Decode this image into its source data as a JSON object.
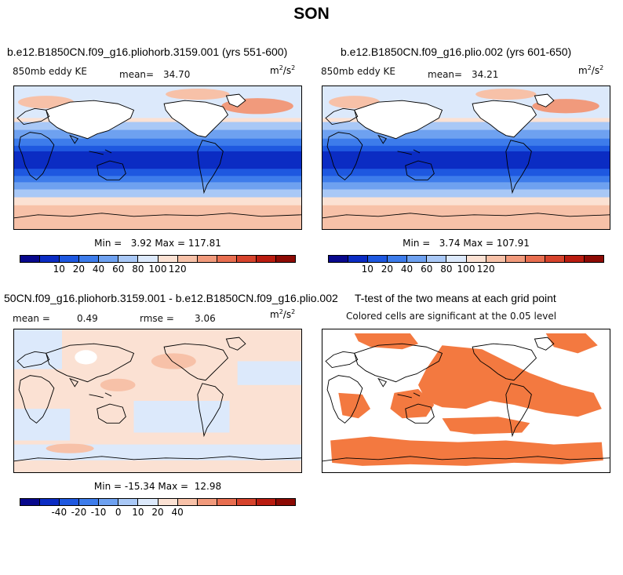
{
  "page": {
    "title": "SON"
  },
  "colors": {
    "scale": [
      "#08088c",
      "#0b2cc3",
      "#1e58e0",
      "#3d7ceb",
      "#6ea1f0",
      "#a9c8f6",
      "#dce9fb",
      "#fbe1d3",
      "#f7c1a8",
      "#f19a7c",
      "#e86e50",
      "#d6432c",
      "#b91c10",
      "#8c0a04"
    ],
    "significant": "#f37940",
    "land_white": "#ffffff"
  },
  "panels": {
    "p1": {
      "title": "b.e12.B1850CN.f09_g16.pliohorb.3159.001 (yrs 551-600)",
      "left_label": "850mb eddy KE",
      "mean_label": "mean=",
      "mean_value": "34.70",
      "units": "m",
      "units_sup": "2",
      "units_tail": "/s",
      "units_sup2": "2",
      "min_label": "Min =",
      "min_value": "3.92",
      "max_label": "Max =",
      "max_value": "117.81"
    },
    "p2": {
      "title": "b.e12.B1850CN.f09_g16.plio.002 (yrs 601-650)",
      "left_label": "850mb eddy KE",
      "mean_label": "mean=",
      "mean_value": "34.21",
      "units": "m",
      "units_sup": "2",
      "units_tail": "/s",
      "units_sup2": "2",
      "min_label": "Min =",
      "min_value": "3.74",
      "max_label": "Max =",
      "max_value": "107.91"
    },
    "p3": {
      "title": "50CN.f09_g16.pliohorb.3159.001 - b.e12.B1850CN.f09_g16.plio.002",
      "mean_label": "mean =",
      "mean_value": "0.49",
      "rmse_label": "rmse =",
      "rmse_value": "3.06",
      "units": "m",
      "units_sup": "2",
      "units_tail": "/s",
      "units_sup2": "2",
      "min_label": "Min =",
      "min_value": "-15.34",
      "max_label": "Max =",
      "max_value": "12.98"
    },
    "p4": {
      "title": "T-test of the two means at each grid point",
      "subtitle": "Colored cells are significant at the 0.05 level"
    }
  },
  "colorbars": {
    "abs": {
      "ticks": [
        "10",
        "20",
        "40",
        "60",
        "80",
        "100",
        "120"
      ]
    },
    "diff": {
      "ticks": [
        "-40",
        "-20",
        "-10",
        "0",
        "10",
        "20",
        "40"
      ]
    }
  }
}
